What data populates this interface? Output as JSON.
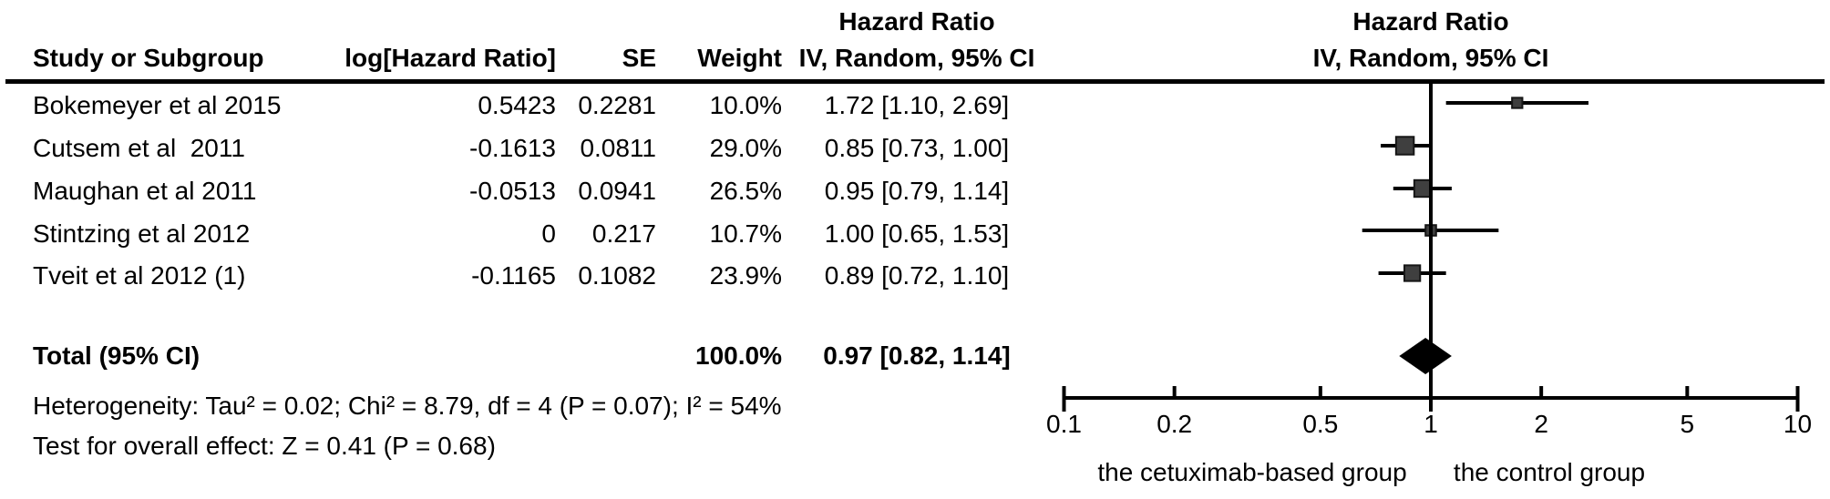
{
  "table": {
    "headers": {
      "effect_title": "Hazard Ratio",
      "study": "Study or Subgroup",
      "log_hr": "log[Hazard Ratio]",
      "se": "SE",
      "weight": "Weight",
      "method": "IV, Random, 95% CI"
    },
    "rows": [
      {
        "study": "Bokemeyer et al 2015",
        "log_hr": "0.5423",
        "se": "0.2281",
        "weight": "10.0%",
        "hr_ci": "1.72 [1.10, 2.69]"
      },
      {
        "study": "Cutsem et al  2011",
        "log_hr": "-0.1613",
        "se": "0.0811",
        "weight": "29.0%",
        "hr_ci": "0.85 [0.73, 1.00]"
      },
      {
        "study": "Maughan et al 2011",
        "log_hr": "-0.0513",
        "se": "0.0941",
        "weight": "26.5%",
        "hr_ci": "0.95 [0.79, 1.14]"
      },
      {
        "study": "Stintzing et al 2012",
        "log_hr": "0",
        "se": "0.217",
        "weight": "10.7%",
        "hr_ci": "1.00 [0.65, 1.53]"
      },
      {
        "study": "Tveit et al 2012 (1)",
        "log_hr": "-0.1165",
        "se": "0.1082",
        "weight": "23.9%",
        "hr_ci": "0.89 [0.72, 1.10]"
      }
    ],
    "total": {
      "label": "Total (95% CI)",
      "weight": "100.0%",
      "hr_ci": "0.97 [0.82, 1.14]"
    },
    "stats": {
      "heterogeneity": "Heterogeneity: Tau² = 0.02; Chi² = 8.79, df = 4 (P = 0.07); I² = 54%",
      "overall_effect": "Test for overall effect: Z = 0.41 (P = 0.68)"
    }
  },
  "plot": {
    "effect_title": "Hazard Ratio",
    "method": "IV, Random, 95% CI"
  },
  "chart_data": {
    "type": "forest",
    "title": "Hazard Ratio IV, Random, 95% CI",
    "x_scale": "log10",
    "xlim": [
      0.1,
      10
    ],
    "x_ticks": [
      0.1,
      0.2,
      0.5,
      1,
      2,
      5,
      10
    ],
    "x_tick_labels": [
      "0.1",
      "0.2",
      "0.5",
      "1",
      "2",
      "5",
      "10"
    ],
    "studies": [
      {
        "name": "Bokemeyer et al 2015",
        "hr": 1.72,
        "ci_low": 1.1,
        "ci_high": 2.69,
        "weight_pct": 10.0
      },
      {
        "name": "Cutsem et al 2011",
        "hr": 0.85,
        "ci_low": 0.73,
        "ci_high": 1.0,
        "weight_pct": 29.0
      },
      {
        "name": "Maughan et al 2011",
        "hr": 0.95,
        "ci_low": 0.79,
        "ci_high": 1.14,
        "weight_pct": 26.5
      },
      {
        "name": "Stintzing et al 2012",
        "hr": 1.0,
        "ci_low": 0.65,
        "ci_high": 1.53,
        "weight_pct": 10.7
      },
      {
        "name": "Tveit et al 2012 (1)",
        "hr": 0.89,
        "ci_low": 0.72,
        "ci_high": 1.1,
        "weight_pct": 23.9
      }
    ],
    "total": {
      "name": "Total (95% CI)",
      "hr": 0.97,
      "ci_low": 0.82,
      "ci_high": 1.14,
      "weight_pct": 100.0
    },
    "favours_left": "the cetuximab-based group",
    "favours_right": "the control group",
    "colors": {
      "marker_fill": "#3f3f3f",
      "marker_stroke": "#161616",
      "line": "#000000",
      "diamond": "#000000"
    }
  }
}
